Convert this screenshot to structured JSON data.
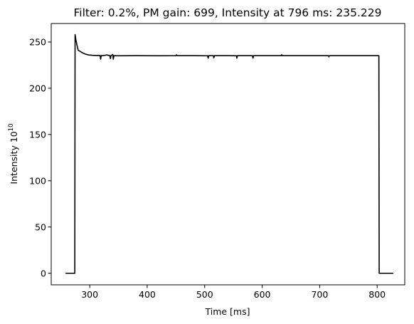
{
  "chart_data": {
    "type": "line",
    "title": "Filter: 0.2%, PM gain: 699, Intensity at 796 ms: 235.229",
    "xlabel": "Time [ms]",
    "ylabel_base": "Intensity 10",
    "ylabel_exponent": "10",
    "xlim": [
      233,
      848
    ],
    "ylim": [
      -12.5,
      270
    ],
    "xticks": [
      300,
      400,
      500,
      600,
      700,
      800
    ],
    "yticks": [
      0,
      50,
      100,
      150,
      200,
      250
    ],
    "grid": false,
    "series": [
      {
        "color": "#000000",
        "x": [
          258,
          274,
          274.5,
          276,
          278,
          280,
          283,
          287,
          292,
          298,
          305,
          312,
          318,
          319,
          320,
          322,
          330,
          335,
          336,
          337,
          340,
          341,
          342,
          350,
          380,
          420,
          450,
          451,
          452,
          480,
          505,
          506,
          507,
          515,
          516,
          517,
          540,
          555,
          556,
          557,
          583,
          584,
          585,
          600,
          633,
          634,
          635,
          660,
          690,
          715,
          716,
          717,
          740,
          770,
          803,
          803.5,
          828
        ],
        "y": [
          0,
          0,
          258,
          252,
          246,
          241,
          240,
          238.5,
          237,
          236,
          235.6,
          235.4,
          235.3,
          231.5,
          235.3,
          235.2,
          236,
          235.2,
          232,
          235.2,
          236.5,
          231.5,
          235.2,
          235.1,
          235.2,
          235.1,
          235.2,
          236.2,
          235.2,
          235.2,
          235.1,
          232.5,
          235.2,
          235.2,
          233,
          235.2,
          235.2,
          235.1,
          232.5,
          235.2,
          235.2,
          232.5,
          235.2,
          235.2,
          235.2,
          236.2,
          235.2,
          235.2,
          235.2,
          235.2,
          234,
          235.2,
          235.2,
          235.2,
          235.2,
          0,
          0
        ]
      }
    ]
  }
}
